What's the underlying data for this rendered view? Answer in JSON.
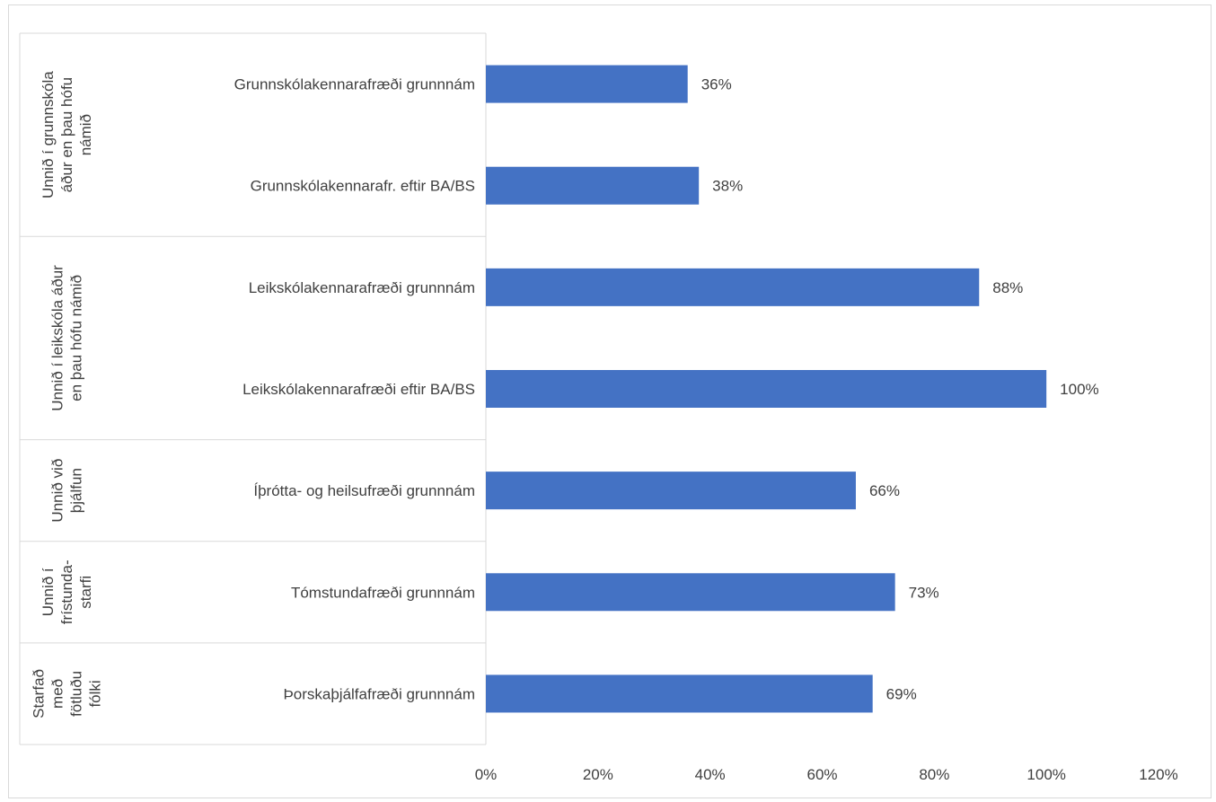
{
  "chart_data": {
    "type": "bar",
    "orientation": "horizontal",
    "groups": [
      {
        "label": "Unnið í grunnskóla áður en þau hófu námið",
        "lines": [
          "Unnið í grunnskóla",
          "áður en þau hófu",
          "námið"
        ]
      },
      {
        "label": "Unnið í leikskóla áður en þau hófu námið",
        "lines": [
          "Unnið í leikskóla áður",
          "en þau hófu námið"
        ]
      },
      {
        "label": "Unnið við þjálfun",
        "lines": [
          "Unnið við",
          "þjálfun"
        ]
      },
      {
        "label": "Unnið í frístunda-starfi",
        "lines": [
          "Unnið í",
          "frístunda-",
          "starfi"
        ]
      },
      {
        "label": "Starfað með fötluðu fólki",
        "lines": [
          "Starfað",
          "með",
          "fötluðu",
          "fólki"
        ]
      }
    ],
    "categories": [
      {
        "label": "Grunnskólakennarafræði grunnnám",
        "group": 0,
        "value": 36,
        "value_label": "36%"
      },
      {
        "label": "Grunnskólakennarafr. eftir BA/BS",
        "group": 0,
        "value": 38,
        "value_label": "38%"
      },
      {
        "label": "Leikskólakennarafræði grunnnám",
        "group": 1,
        "value": 88,
        "value_label": "88%"
      },
      {
        "label": "Leikskólakennarafræði eftir BA/BS",
        "group": 1,
        "value": 100,
        "value_label": "100%"
      },
      {
        "label": "Íþrótta- og heilsufræði grunnnám",
        "group": 2,
        "value": 66,
        "value_label": "66%"
      },
      {
        "label": "Tómstundafræði grunnnám",
        "group": 3,
        "value": 73,
        "value_label": "73%"
      },
      {
        "label": "Þorskaþjálfafræði grunnnám",
        "group": 4,
        "value": 69,
        "value_label": "69%"
      }
    ],
    "xlim": [
      0,
      120
    ],
    "x_ticks": [
      0,
      20,
      40,
      60,
      80,
      100,
      120
    ],
    "x_tick_labels": [
      "0%",
      "20%",
      "40%",
      "60%",
      "80%",
      "100%",
      "120%"
    ],
    "grid": false,
    "legend": "none",
    "colors": {
      "bar": "#4472c4",
      "axis": "#d9d9d9",
      "text": "#404040"
    }
  }
}
